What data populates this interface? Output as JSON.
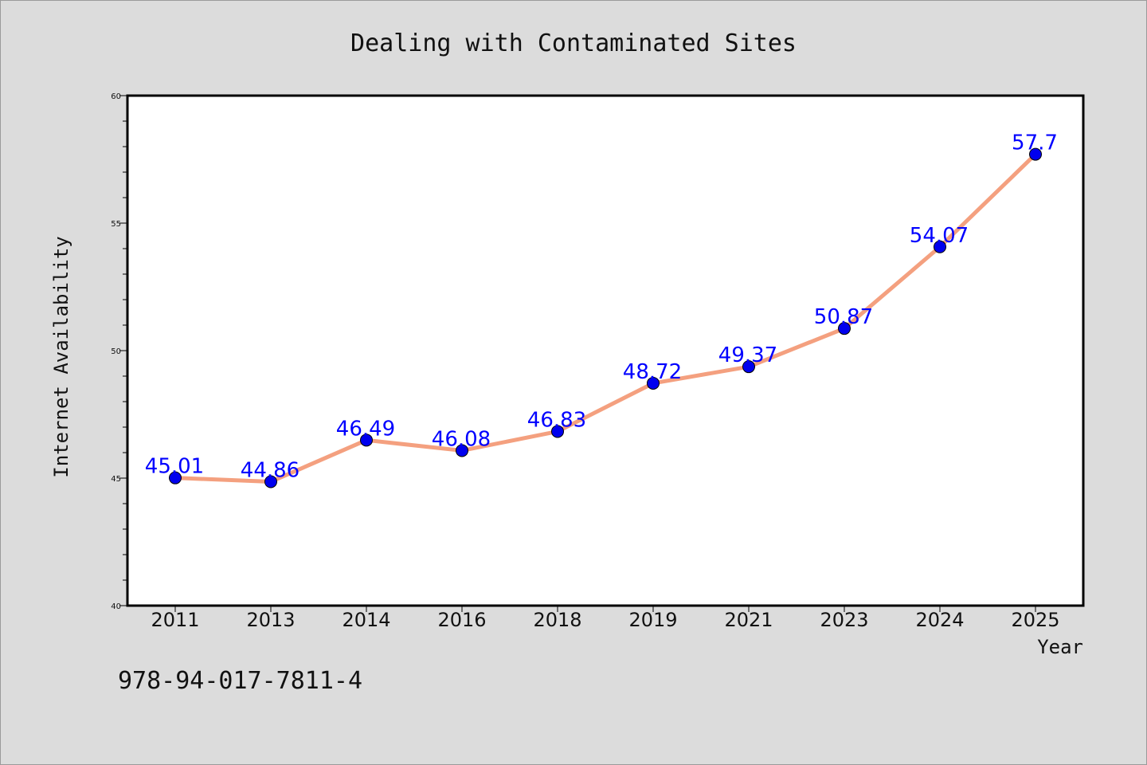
{
  "chart_data": {
    "type": "line",
    "title": "Dealing with Contaminated Sites",
    "xlabel": "Year",
    "ylabel": "Internet Availability",
    "categories": [
      "2011",
      "2013",
      "2014",
      "2016",
      "2018",
      "2019",
      "2021",
      "2023",
      "2024",
      "2025"
    ],
    "series": [
      {
        "values": [
          45.01,
          44.86,
          46.49,
          46.08,
          46.83,
          48.72,
          49.37,
          50.87,
          54.07,
          57.7
        ],
        "labels": [
          "45.01",
          "44.86",
          "46.49",
          "46.08",
          "46.83",
          "48.72",
          "49.37",
          "50.87",
          "54.07",
          "57.7"
        ],
        "line_color": "#f4a07f",
        "marker_color": "#0000ee",
        "label_color": "#0000ff"
      }
    ],
    "ylim": [
      40,
      60
    ],
    "yticks": [
      "40",
      "45",
      "50",
      "55",
      "60"
    ],
    "grid": false,
    "legend": "none"
  },
  "footer": {
    "isbn": "978-94-017-7811-4"
  }
}
